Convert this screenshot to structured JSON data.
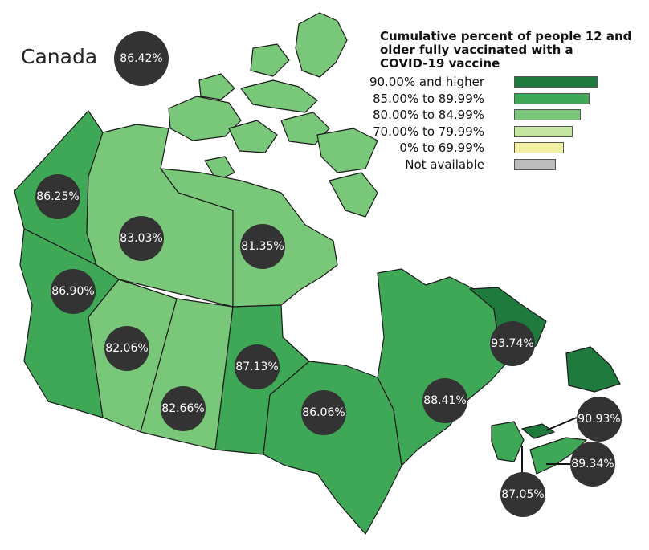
{
  "map_title": "Canada",
  "national_value": "86.42%",
  "legend": {
    "title_lines": [
      "Cumulative percent of people 12 and",
      "older fully vaccinated with a",
      "COVID-19 vaccine"
    ],
    "items": [
      {
        "label": "90.00% and higher",
        "color": "#1f7a3d",
        "bar_fraction": 1.0
      },
      {
        "label": "85.00% to 89.99%",
        "color": "#3ea857",
        "bar_fraction": 0.9
      },
      {
        "label": "80.00% to 84.99%",
        "color": "#79c779",
        "bar_fraction": 0.8
      },
      {
        "label": "70.00% to 79.99%",
        "color": "#c5e6a1",
        "bar_fraction": 0.7
      },
      {
        "label": "0% to 69.99%",
        "color": "#f2f0a3",
        "bar_fraction": 0.6
      },
      {
        "label": "Not available",
        "color": "#bdbdbd",
        "bar_fraction": 0.5
      }
    ]
  },
  "regions": [
    {
      "name": "Yukon",
      "value": "86.25%",
      "color": "#3ea857"
    },
    {
      "name": "Northwest Territories",
      "value": "83.03%",
      "color": "#79c779"
    },
    {
      "name": "Nunavut",
      "value": "81.35%",
      "color": "#79c779"
    },
    {
      "name": "British Columbia",
      "value": "86.90%",
      "color": "#3ea857"
    },
    {
      "name": "Alberta",
      "value": "82.06%",
      "color": "#79c779"
    },
    {
      "name": "Saskatchewan",
      "value": "82.66%",
      "color": "#79c779"
    },
    {
      "name": "Manitoba",
      "value": "87.13%",
      "color": "#3ea857"
    },
    {
      "name": "Ontario",
      "value": "86.06%",
      "color": "#3ea857"
    },
    {
      "name": "Quebec",
      "value": "88.41%",
      "color": "#3ea857"
    },
    {
      "name": "Newfoundland and Labrador",
      "value": "93.74%",
      "color": "#1f7a3d"
    },
    {
      "name": "Prince Edward Island",
      "value": "90.93%",
      "color": "#1f7a3d"
    },
    {
      "name": "Nova Scotia",
      "value": "89.34%",
      "color": "#3ea857"
    },
    {
      "name": "New Brunswick",
      "value": "87.05%",
      "color": "#3ea857"
    }
  ]
}
